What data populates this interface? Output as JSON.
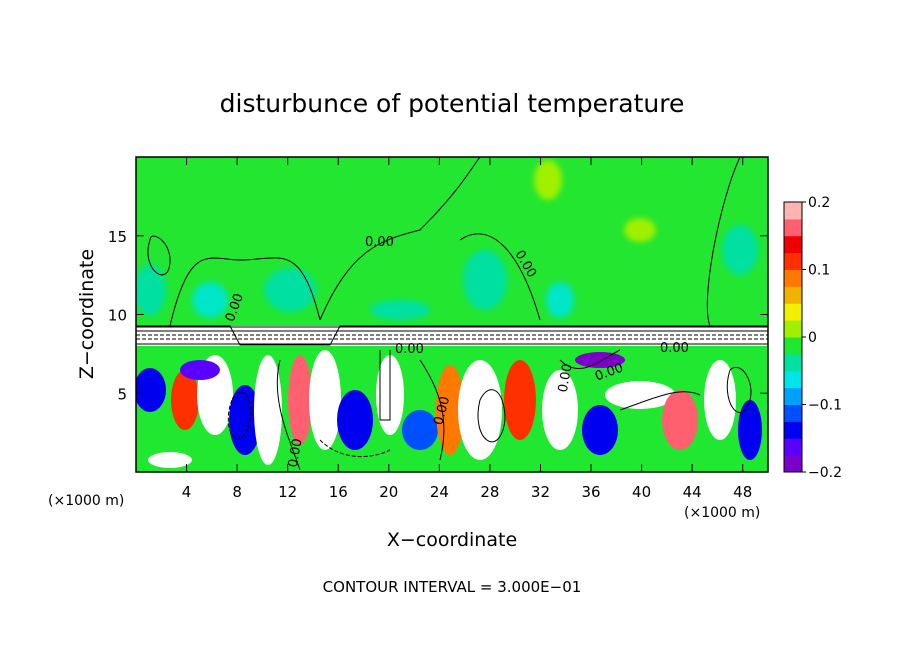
{
  "chart_data": {
    "type": "heatmap",
    "title": "disturbunce of potential temperature",
    "xlabel": "X−coordinate",
    "ylabel": "Z−coordinate",
    "x_unit_left": "(×1000 m)",
    "x_unit_right": "(×1000 m)",
    "xlim": [
      0,
      50
    ],
    "ylim": [
      0,
      20
    ],
    "x_ticks": [
      4,
      8,
      12,
      16,
      20,
      24,
      28,
      32,
      36,
      40,
      44,
      48
    ],
    "x_tick_labels": [
      "4",
      "8",
      "12",
      "16",
      "20",
      "24",
      "28",
      "32",
      "36",
      "40",
      "44",
      "48"
    ],
    "y_ticks": [
      5,
      10,
      15
    ],
    "y_tick_labels": [
      "5",
      "10",
      "15"
    ],
    "colorbar": {
      "range": [
        -0.2,
        0.2
      ],
      "ticks": [
        0.2,
        0.1,
        0,
        -0.1,
        -0.2
      ],
      "tick_labels": [
        "0.2",
        "0.1",
        "0",
        "−0.1",
        "−0.2"
      ],
      "colors": [
        "#7b00c8",
        "#5a00ff",
        "#0000f0",
        "#0050ff",
        "#00a0ff",
        "#00e6e6",
        "#00e0a0",
        "#20e830",
        "#a0f000",
        "#f0f000",
        "#f0b400",
        "#ff7800",
        "#ff3000",
        "#f00000",
        "#ff6070",
        "#ffb4b4"
      ]
    },
    "contour_labels": [
      "0.00",
      "0.00",
      "0.00",
      "0.00",
      "0.00",
      "0.00",
      "0.00",
      "0.00",
      "0.00"
    ],
    "footer": "CONTOUR INTERVAL = 3.000E−01"
  }
}
